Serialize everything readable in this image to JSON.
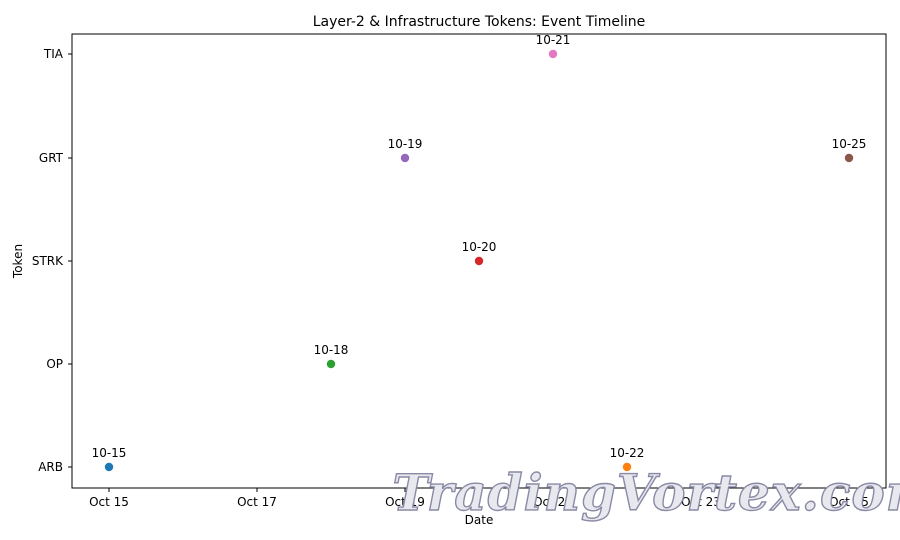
{
  "chart_data": {
    "type": "scatter",
    "title": "Layer-2 & Infrastructure Tokens: Event Timeline",
    "xlabel": "Date",
    "ylabel": "Token",
    "categories": [
      "ARB",
      "OP",
      "STRK",
      "GRT",
      "TIA"
    ],
    "x_ticks": [
      "2024-10-15",
      "2024-10-17",
      "2024-10-19",
      "2024-10-21",
      "2024-10-23",
      "2024-10-25"
    ],
    "x_tick_labels": [
      "Oct 15",
      "Oct 17",
      "Oct 19",
      "Oct 21",
      "Oct 23",
      "Oct 25"
    ],
    "xlim": [
      "2024-10-14T12:00",
      "2024-10-25T12:00"
    ],
    "grid": false,
    "legend": "none",
    "points": [
      {
        "x": "2024-10-15",
        "y": "ARB",
        "label": "10-15",
        "color": "#1f77b4"
      },
      {
        "x": "2024-10-22",
        "y": "ARB",
        "label": "10-22",
        "color": "#ff7f0e"
      },
      {
        "x": "2024-10-18",
        "y": "OP",
        "label": "10-18",
        "color": "#2ca02c"
      },
      {
        "x": "2024-10-20",
        "y": "STRK",
        "label": "10-20",
        "color": "#d62728"
      },
      {
        "x": "2024-10-19",
        "y": "GRT",
        "label": "10-19",
        "color": "#9467bd"
      },
      {
        "x": "2024-10-25",
        "y": "GRT",
        "label": "10-25",
        "color": "#8c564b"
      },
      {
        "x": "2024-10-21",
        "y": "TIA",
        "label": "10-21",
        "color": "#e377c2"
      }
    ]
  },
  "watermark": {
    "text": "TradingVortex.com"
  }
}
